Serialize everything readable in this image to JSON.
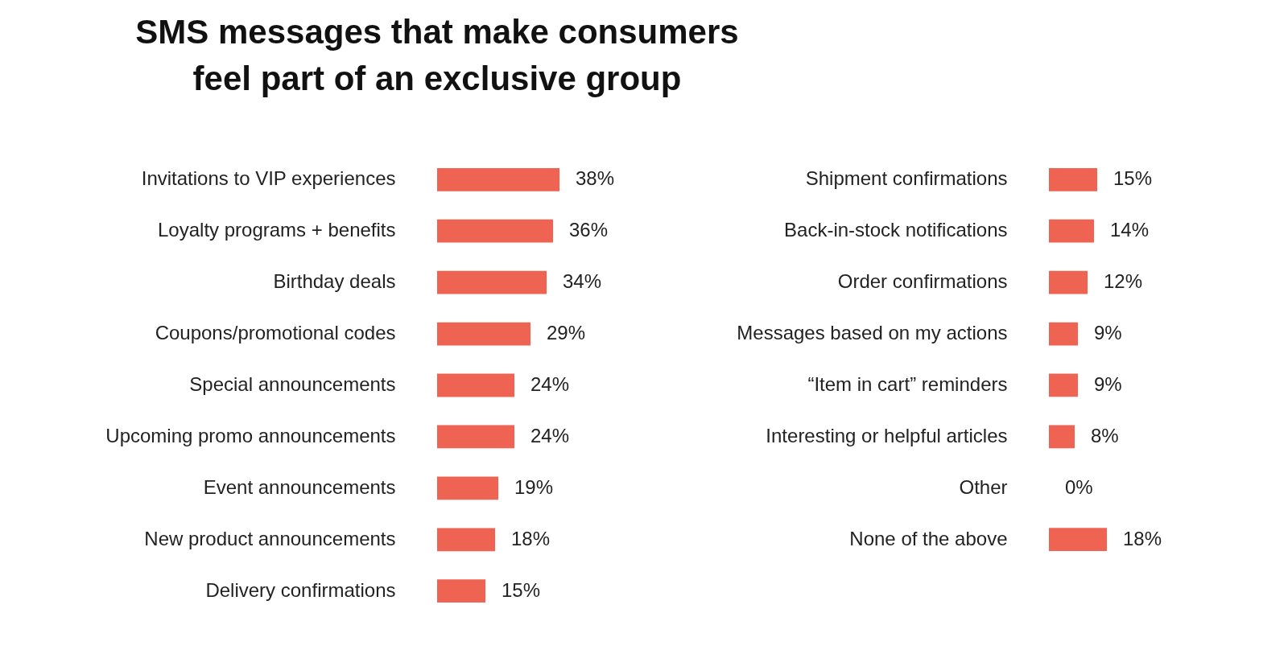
{
  "chart_data": [
    {
      "type": "bar",
      "orientation": "horizontal",
      "title": "SMS messages that make consumers feel part of an exclusive group",
      "color": "#ee6352",
      "categories": [
        "Invitations to VIP experiences",
        "Loyalty programs + benefits",
        "Birthday deals",
        "Coupons/promotional codes",
        "Special announcements",
        "Upcoming promo announcements",
        "Event announcements",
        "New product announcements",
        "Delivery confirmations"
      ],
      "values": [
        38,
        36,
        34,
        29,
        24,
        24,
        19,
        18,
        15
      ],
      "value_labels": [
        "38%",
        "36%",
        "34%",
        "29%",
        "24%",
        "24%",
        "19%",
        "18%",
        "15%"
      ]
    },
    {
      "type": "bar",
      "orientation": "horizontal",
      "color": "#ee6352",
      "categories": [
        "Shipment confirmations",
        "Back-in-stock notifications",
        "Order confirmations",
        "Messages based on my actions",
        "“Item in cart” reminders",
        "Interesting or helpful articles",
        "Other",
        "None of the above"
      ],
      "values": [
        15,
        14,
        12,
        9,
        9,
        8,
        0,
        18
      ],
      "value_labels": [
        "15%",
        "14%",
        "12%",
        "9%",
        "9%",
        "8%",
        "0%",
        "18%"
      ]
    }
  ]
}
